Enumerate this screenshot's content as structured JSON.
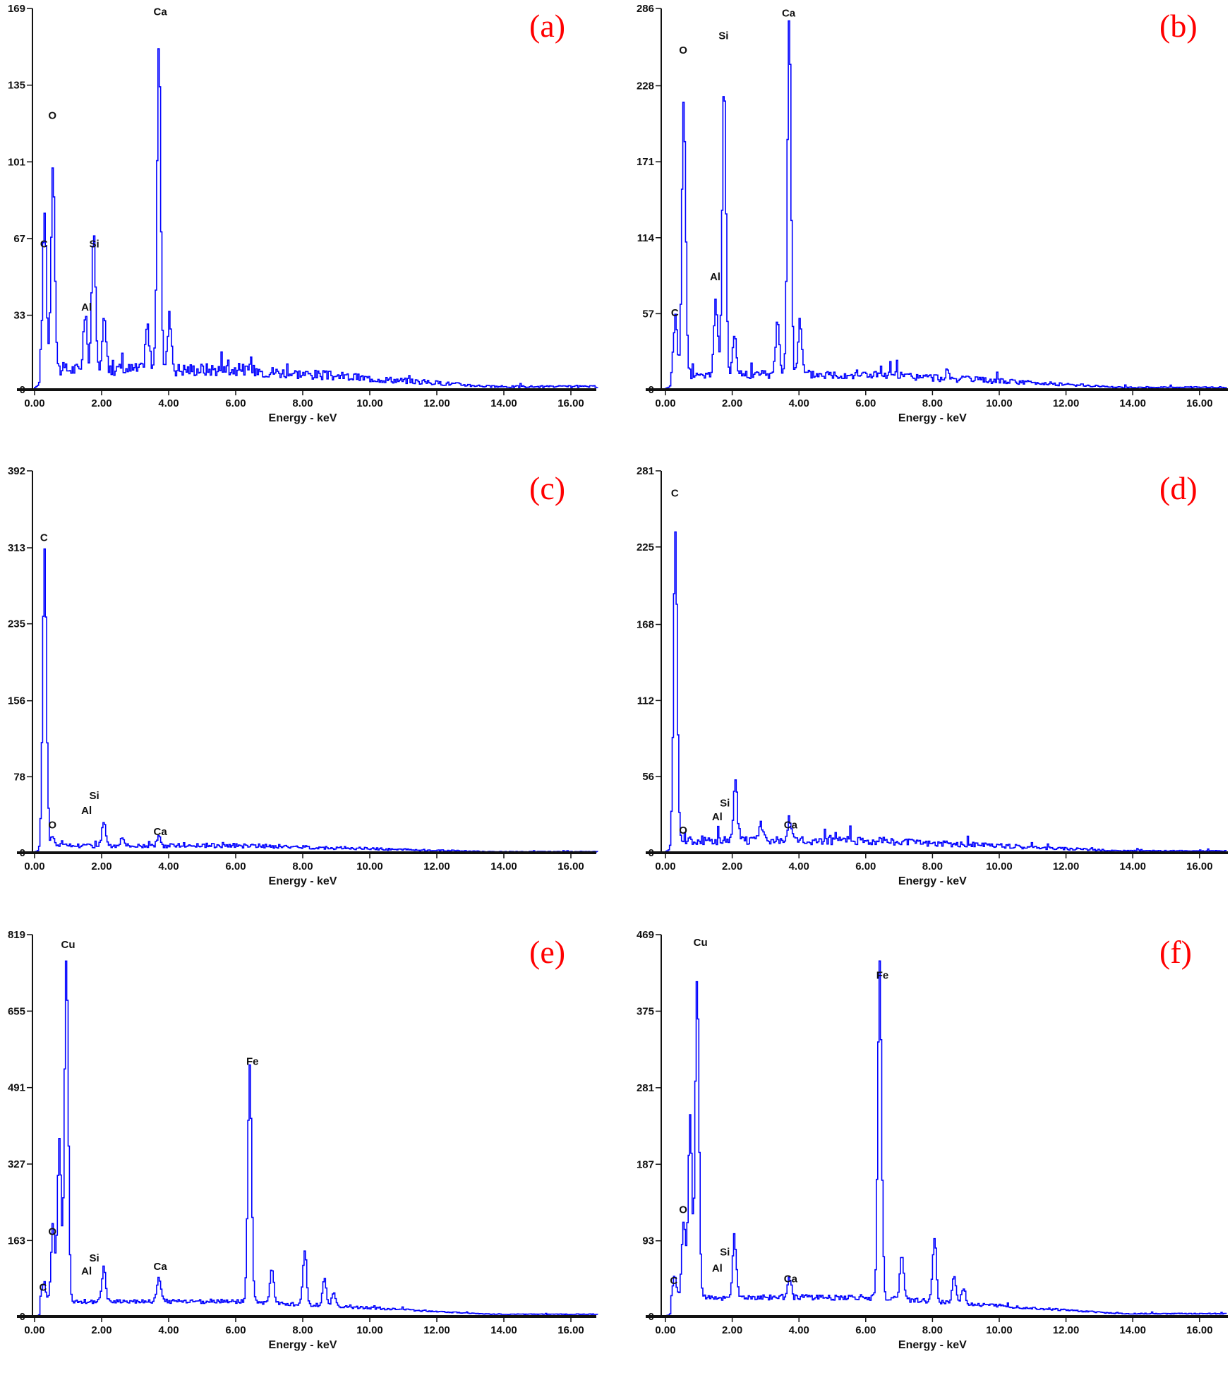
{
  "figure": {
    "x_axis_label": "Energy - keV",
    "x_ticks": [
      "0.00",
      "2.00",
      "4.00",
      "6.00",
      "8.00",
      "10.00",
      "12.00",
      "14.00",
      "16.00"
    ],
    "line_color": "#0000ff",
    "label_color": "#ff0000"
  },
  "chart_data": [
    {
      "type": "line",
      "panel": "(a)",
      "xlabel": "Energy - keV",
      "ylabel": "",
      "xlim": [
        0,
        16.8
      ],
      "ylim": [
        0,
        169
      ],
      "y_ticks": [
        0,
        33,
        67,
        101,
        135,
        169
      ],
      "x_ticks": [
        0,
        2,
        4,
        6,
        8,
        10,
        12,
        14,
        16
      ],
      "peak_labels": [
        {
          "text": "C",
          "x": 0.28,
          "y": 63
        },
        {
          "text": "O",
          "x": 0.53,
          "y": 120
        },
        {
          "text": "Al",
          "x": 1.55,
          "y": 35
        },
        {
          "text": "Si",
          "x": 1.78,
          "y": 63
        },
        {
          "text": "Ca",
          "x": 3.75,
          "y": 166
        }
      ],
      "peaks": [
        {
          "element": "C",
          "x": 0.28,
          "y": 70
        },
        {
          "element": "O",
          "x": 0.53,
          "y": 92
        },
        {
          "element": "Al",
          "x": 1.49,
          "y": 24
        },
        {
          "element": "Si",
          "x": 1.74,
          "y": 61
        },
        {
          "x": 2.05,
          "y": 23
        },
        {
          "x": 3.34,
          "y": 20
        },
        {
          "element": "Ca",
          "x": 3.69,
          "y": 142
        },
        {
          "x": 4.01,
          "y": 24
        }
      ],
      "background": 6,
      "noise": 5
    },
    {
      "type": "line",
      "panel": "(b)",
      "xlabel": "Energy - keV",
      "xlim": [
        0,
        16.8
      ],
      "ylim": [
        0,
        286
      ],
      "y_ticks": [
        0,
        57,
        114,
        171,
        228,
        286
      ],
      "x_ticks": [
        0,
        2,
        4,
        6,
        8,
        10,
        12,
        14,
        16
      ],
      "peak_labels": [
        {
          "text": "C",
          "x": 0.28,
          "y": 55
        },
        {
          "text": "O",
          "x": 0.53,
          "y": 252
        },
        {
          "text": "Al",
          "x": 1.49,
          "y": 82
        },
        {
          "text": "Si",
          "x": 1.74,
          "y": 263
        },
        {
          "text": "Ca",
          "x": 3.69,
          "y": 280
        }
      ],
      "peaks": [
        {
          "element": "C",
          "x": 0.28,
          "y": 43
        },
        {
          "element": "O",
          "x": 0.53,
          "y": 206
        },
        {
          "element": "Al",
          "x": 1.49,
          "y": 55
        },
        {
          "element": "Si",
          "x": 1.74,
          "y": 219
        },
        {
          "x": 2.05,
          "y": 30
        },
        {
          "x": 3.34,
          "y": 42
        },
        {
          "element": "Ca",
          "x": 3.69,
          "y": 266
        },
        {
          "x": 4.01,
          "y": 40
        }
      ],
      "background": 8,
      "noise": 6
    },
    {
      "type": "line",
      "panel": "(c)",
      "xlabel": "Energy - keV",
      "xlim": [
        0,
        16.8
      ],
      "ylim": [
        0,
        392
      ],
      "y_ticks": [
        0,
        78,
        156,
        235,
        313,
        392
      ],
      "x_ticks": [
        0,
        2,
        4,
        6,
        8,
        10,
        12,
        14,
        16
      ],
      "peak_labels": [
        {
          "text": "C",
          "x": 0.28,
          "y": 320
        },
        {
          "text": "O",
          "x": 0.53,
          "y": 25
        },
        {
          "text": "Al",
          "x": 1.55,
          "y": 40
        },
        {
          "text": "Si",
          "x": 1.78,
          "y": 55
        },
        {
          "text": "Ca",
          "x": 3.75,
          "y": 18
        }
      ],
      "peaks": [
        {
          "element": "C",
          "x": 0.28,
          "y": 306
        },
        {
          "element": "O",
          "x": 0.53,
          "y": 10
        },
        {
          "element": "Si",
          "x": 2.05,
          "y": 25
        },
        {
          "x": 2.6,
          "y": 10
        },
        {
          "element": "Ca",
          "x": 3.69,
          "y": 8
        }
      ],
      "background": 5,
      "noise": 4
    },
    {
      "type": "line",
      "panel": "(d)",
      "xlabel": "Energy - keV",
      "xlim": [
        0,
        16.8
      ],
      "ylim": [
        0,
        281
      ],
      "y_ticks": [
        0,
        56,
        112,
        168,
        225,
        281
      ],
      "x_ticks": [
        0,
        2,
        4,
        6,
        8,
        10,
        12,
        14,
        16
      ],
      "peak_labels": [
        {
          "text": "C",
          "x": 0.28,
          "y": 262
        },
        {
          "text": "O",
          "x": 0.53,
          "y": 14
        },
        {
          "text": "Al",
          "x": 1.55,
          "y": 24
        },
        {
          "text": "Si",
          "x": 1.78,
          "y": 34
        },
        {
          "text": "Ca",
          "x": 3.75,
          "y": 18
        }
      ],
      "peaks": [
        {
          "element": "C",
          "x": 0.28,
          "y": 226
        },
        {
          "element": "Si",
          "x": 2.08,
          "y": 44
        },
        {
          "x": 2.85,
          "y": 12
        },
        {
          "element": "Ca",
          "x": 3.69,
          "y": 16
        }
      ],
      "background": 6,
      "noise": 5
    },
    {
      "type": "line",
      "panel": "(e)",
      "xlabel": "Energy - keV",
      "xlim": [
        0,
        16.8
      ],
      "ylim": [
        0,
        819
      ],
      "y_ticks": [
        0,
        163,
        327,
        491,
        655,
        819
      ],
      "x_ticks": [
        0,
        2,
        4,
        6,
        8,
        10,
        12,
        14,
        16
      ],
      "peak_labels": [
        {
          "text": "Cu",
          "x": 1.0,
          "y": 790
        },
        {
          "text": "Fe",
          "x": 6.5,
          "y": 540
        },
        {
          "text": "O",
          "x": 0.53,
          "y": 175
        },
        {
          "text": "C",
          "x": 0.25,
          "y": 55
        },
        {
          "text": "Al",
          "x": 1.55,
          "y": 90
        },
        {
          "text": "Si",
          "x": 1.78,
          "y": 118
        },
        {
          "text": "Ca",
          "x": 3.75,
          "y": 100
        }
      ],
      "peaks": [
        {
          "element": "C",
          "x": 0.26,
          "y": 40
        },
        {
          "element": "O",
          "x": 0.53,
          "y": 165
        },
        {
          "x": 0.72,
          "y": 348
        },
        {
          "element": "Cu",
          "x": 0.93,
          "y": 740
        },
        {
          "element": "Si",
          "x": 2.05,
          "y": 72
        },
        {
          "element": "Ca",
          "x": 3.69,
          "y": 50
        },
        {
          "element": "Fe",
          "x": 6.4,
          "y": 510
        },
        {
          "x": 7.06,
          "y": 74
        },
        {
          "x": 8.04,
          "y": 112
        },
        {
          "x": 8.63,
          "y": 56
        },
        {
          "x": 8.9,
          "y": 28
        }
      ],
      "background": 28,
      "noise": 8
    },
    {
      "type": "line",
      "panel": "(f)",
      "xlabel": "Energy - keV",
      "xlim": [
        0,
        16.8
      ],
      "ylim": [
        0,
        469
      ],
      "y_ticks": [
        0,
        93,
        187,
        281,
        375,
        469
      ],
      "x_ticks": [
        0,
        2,
        4,
        6,
        8,
        10,
        12,
        14,
        16
      ],
      "peak_labels": [
        {
          "text": "Cu",
          "x": 1.05,
          "y": 455
        },
        {
          "text": "Fe",
          "x": 6.5,
          "y": 415
        },
        {
          "text": "O",
          "x": 0.53,
          "y": 127
        },
        {
          "text": "C",
          "x": 0.25,
          "y": 40
        },
        {
          "text": "Al",
          "x": 1.55,
          "y": 55
        },
        {
          "text": "Si",
          "x": 1.78,
          "y": 75
        },
        {
          "text": "Ca",
          "x": 3.75,
          "y": 42
        }
      ],
      "peaks": [
        {
          "element": "C",
          "x": 0.26,
          "y": 27
        },
        {
          "element": "O",
          "x": 0.53,
          "y": 95
        },
        {
          "x": 0.72,
          "y": 226
        },
        {
          "element": "Cu",
          "x": 0.93,
          "y": 397
        },
        {
          "element": "Si",
          "x": 2.05,
          "y": 72
        },
        {
          "element": "Ca",
          "x": 3.69,
          "y": 28
        },
        {
          "element": "Fe",
          "x": 6.4,
          "y": 411
        },
        {
          "x": 7.06,
          "y": 56
        },
        {
          "x": 8.04,
          "y": 75
        },
        {
          "x": 8.63,
          "y": 33
        },
        {
          "x": 8.9,
          "y": 17
        }
      ],
      "background": 20,
      "noise": 6
    }
  ]
}
